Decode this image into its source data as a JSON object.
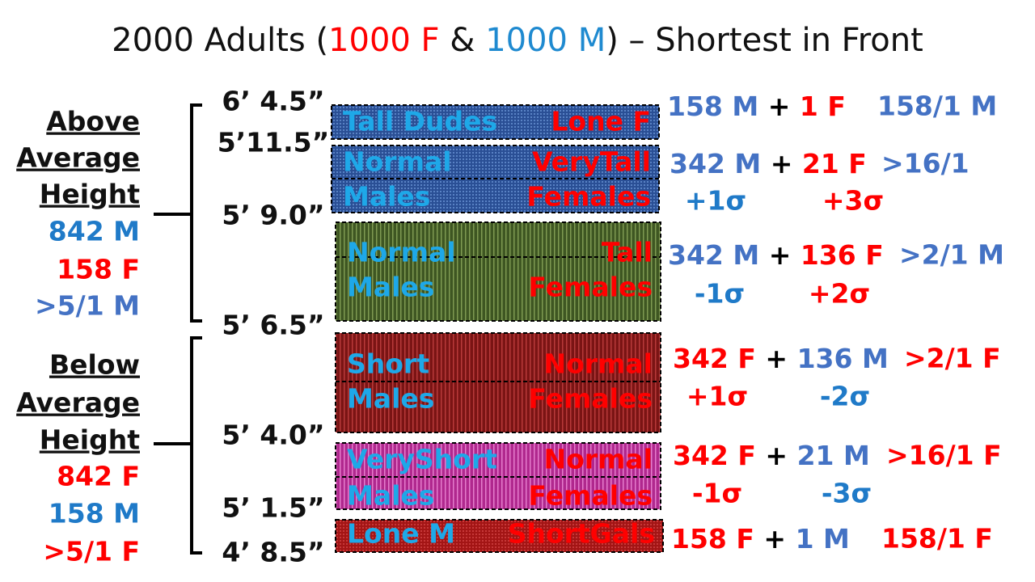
{
  "title": [
    "2000 Adults (",
    "1000 F",
    " & ",
    "1000 M",
    ") – Shortest in Front"
  ],
  "groups": [
    {
      "heading": [
        "Above",
        "Average",
        "Height"
      ],
      "lines": [
        "842 M",
        "158 F",
        ">5/1 M"
      ]
    },
    {
      "heading": [
        "Below",
        "Average",
        "Height"
      ],
      "lines": [
        "842 F",
        "158 M",
        ">5/1 F"
      ]
    }
  ],
  "heights": [
    "6’ 4.5”",
    "5’11.5”",
    "5’ 9.0”",
    "5’ 6.5”",
    "5’ 4.0”",
    "5’ 1.5”",
    "4’ 8.5”"
  ],
  "bands": [
    {
      "left": [
        "Tall Dudes"
      ],
      "right": [
        "Lone F"
      ]
    },
    {
      "left": [
        "Normal",
        "Males"
      ],
      "right": [
        "VeryTall",
        "Females"
      ]
    },
    {
      "left": [
        "Normal",
        "Males"
      ],
      "right": [
        "Tall",
        "Females"
      ]
    },
    {
      "left": [
        "Short",
        "Males"
      ],
      "right": [
        "Normal",
        "Females"
      ]
    },
    {
      "left": [
        "VeryShort",
        "Males"
      ],
      "right": [
        "Normal",
        "Females"
      ]
    },
    {
      "left": [
        "Lone M"
      ],
      "right": [
        "ShortGals"
      ]
    }
  ],
  "stats": [
    {
      "main": [
        "158 M",
        "+",
        "1 F"
      ],
      "ratio": "158/1 M"
    },
    {
      "main": [
        "342 M",
        "+",
        "21 F"
      ],
      "ratio": ">16/1",
      "sigma": [
        "+1σ",
        "+3σ"
      ]
    },
    {
      "main": [
        "342 M",
        "+",
        "136 F"
      ],
      "ratio": ">2/1 M",
      "sigma": [
        "-1σ",
        "+2σ"
      ]
    },
    {
      "main": [
        "342 F",
        "+",
        "136 M"
      ],
      "ratio": ">2/1 F",
      "sigma": [
        "+1σ",
        "-2σ"
      ]
    },
    {
      "main": [
        "342 F",
        "+",
        "21 M"
      ],
      "ratio": ">16/1 F",
      "sigma": [
        "-1σ",
        "-3σ"
      ]
    },
    {
      "main": [
        "158 F",
        "+",
        "1 M"
      ],
      "ratio": "158/1 F"
    }
  ]
}
